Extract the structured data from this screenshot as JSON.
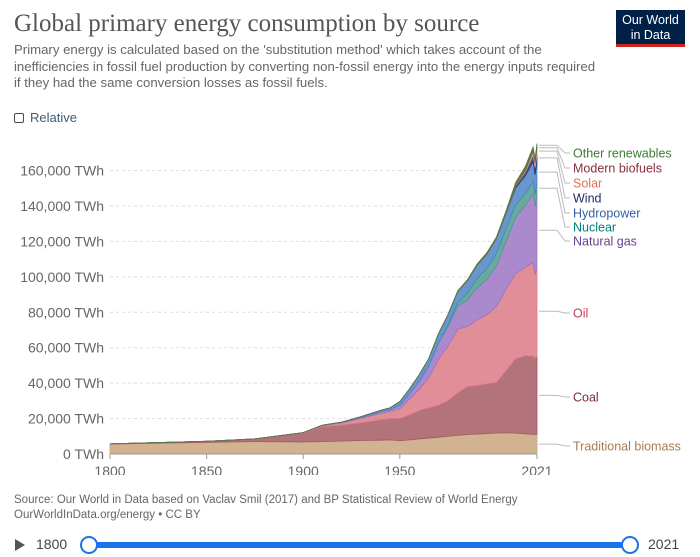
{
  "title": "Global primary energy consumption by source",
  "subtitle": "Primary energy is calculated based on the 'substitution method' which takes account of the inefficiencies in fossil fuel production by converting non-fossil energy into the energy inputs required if they had the same conversion losses as fossil fuels.",
  "logo": {
    "line1": "Our World",
    "line2": "in Data"
  },
  "relative_label": "Relative",
  "source_line1": "Source: Our World in Data based on Vaclav Smil (2017) and BP Statistical Review of World Energy",
  "source_line2": "OurWorldInData.org/energy • CC BY",
  "timeline": {
    "start": "1800",
    "end": "2021"
  },
  "colors": {
    "brand": "#002147",
    "accent": "#ce261e",
    "slider": "#1a73e8"
  },
  "chart_data": {
    "type": "area",
    "stacked": true,
    "x": [
      1800,
      1850,
      1875,
      1900,
      1910,
      1920,
      1930,
      1940,
      1945,
      1950,
      1955,
      1960,
      1965,
      1970,
      1975,
      1980,
      1985,
      1990,
      1995,
      2000,
      2005,
      2010,
      2015,
      2019,
      2020,
      2021
    ],
    "ylim": [
      0,
      175000
    ],
    "y_ticks": [
      "0 TWh",
      "20,000 TWh",
      "40,000 TWh",
      "60,000 TWh",
      "80,000 TWh",
      "100,000 TWh",
      "120,000 TWh",
      "140,000 TWh",
      "160,000 TWh"
    ],
    "y_tick_values": [
      0,
      20000,
      40000,
      60000,
      80000,
      100000,
      120000,
      140000,
      160000
    ],
    "x_ticks": [
      "1800",
      "1850",
      "1900",
      "1950",
      "2021"
    ],
    "x_tick_values": [
      1800,
      1850,
      1900,
      1950,
      2021
    ],
    "grid": true,
    "legend": "right",
    "series": [
      {
        "name": "Traditional biomass",
        "color": "#c9a47e",
        "label_color": "#a87c4f",
        "values": [
          5600,
          6600,
          7000,
          6800,
          7000,
          7300,
          7600,
          7800,
          8000,
          7500,
          8000,
          8500,
          9000,
          9500,
          10000,
          10500,
          11000,
          11200,
          11500,
          11800,
          12000,
          11800,
          11400,
          11100,
          11100,
          11100
        ]
      },
      {
        "name": "Coal",
        "color": "#a65a63",
        "label_color": "#7a3030",
        "values": [
          100,
          600,
          1500,
          5000,
          8500,
          9000,
          10000,
          11500,
          12000,
          12500,
          14000,
          16000,
          17000,
          18000,
          20000,
          24000,
          27000,
          27500,
          28000,
          28500,
          35000,
          42000,
          44000,
          44000,
          43000,
          44000
        ]
      },
      {
        "name": "Oil",
        "color": "#dc7a86",
        "label_color": "#c13b5a",
        "values": [
          0,
          0,
          0,
          200,
          500,
          1200,
          2500,
          3500,
          4000,
          5500,
          9000,
          12000,
          17000,
          26000,
          31000,
          36000,
          34000,
          37000,
          39000,
          43000,
          46000,
          48000,
          50000,
          53000,
          47000,
          51000
        ]
      },
      {
        "name": "Natural gas",
        "color": "#9b76c3",
        "label_color": "#6d3e91",
        "values": [
          0,
          0,
          0,
          60,
          200,
          300,
          600,
          900,
          1100,
          2000,
          3000,
          4500,
          6500,
          9000,
          11000,
          13000,
          15000,
          18000,
          20000,
          23000,
          27000,
          32000,
          35000,
          39000,
          38500,
          40400
        ]
      },
      {
        "name": "Nuclear",
        "color": "#4e9c8d",
        "label_color": "#00847e",
        "values": [
          0,
          0,
          0,
          0,
          0,
          0,
          0,
          0,
          0,
          0,
          0,
          10,
          100,
          230,
          1000,
          1900,
          3900,
          5300,
          6100,
          6800,
          7200,
          7000,
          6500,
          7000,
          6800,
          7000
        ]
      },
      {
        "name": "Hydropower",
        "color": "#4d85c6",
        "label_color": "#3360a9",
        "values": [
          0,
          0,
          0,
          0,
          100,
          200,
          400,
          900,
          1000,
          2100,
          2700,
          3600,
          4300,
          5100,
          5800,
          6500,
          7000,
          7500,
          8100,
          8300,
          8600,
          9500,
          10200,
          11000,
          11300,
          11200
        ]
      },
      {
        "name": "Wind",
        "color": "#27386e",
        "label_color": "#1a2a5e",
        "values": [
          0,
          0,
          0,
          0,
          0,
          0,
          0,
          0,
          0,
          0,
          0,
          0,
          0,
          0,
          0,
          0,
          0,
          10,
          20,
          100,
          280,
          900,
          2200,
          3700,
          4100,
          4900
        ]
      },
      {
        "name": "Solar",
        "color": "#e8a1a5",
        "label_color": "#e56e5a",
        "values": [
          0,
          0,
          0,
          0,
          0,
          0,
          0,
          0,
          0,
          0,
          0,
          0,
          0,
          0,
          0,
          0,
          0,
          0,
          0,
          10,
          20,
          90,
          660,
          1800,
          2200,
          2700
        ]
      },
      {
        "name": "Modern biofuels",
        "color": "#b05a3d",
        "label_color": "#883039",
        "values": [
          0,
          0,
          0,
          0,
          0,
          0,
          0,
          0,
          0,
          0,
          0,
          0,
          0,
          0,
          0,
          0,
          100,
          200,
          250,
          300,
          400,
          900,
          1000,
          1100,
          1050,
          1100
        ]
      },
      {
        "name": "Other renewables",
        "color": "#4c7b45",
        "label_color": "#3f7a34",
        "values": [
          0,
          0,
          0,
          0,
          0,
          0,
          0,
          0,
          0,
          0,
          0,
          0,
          50,
          100,
          150,
          250,
          400,
          550,
          600,
          650,
          800,
          1200,
          1500,
          1700,
          1750,
          1800
        ]
      }
    ]
  }
}
